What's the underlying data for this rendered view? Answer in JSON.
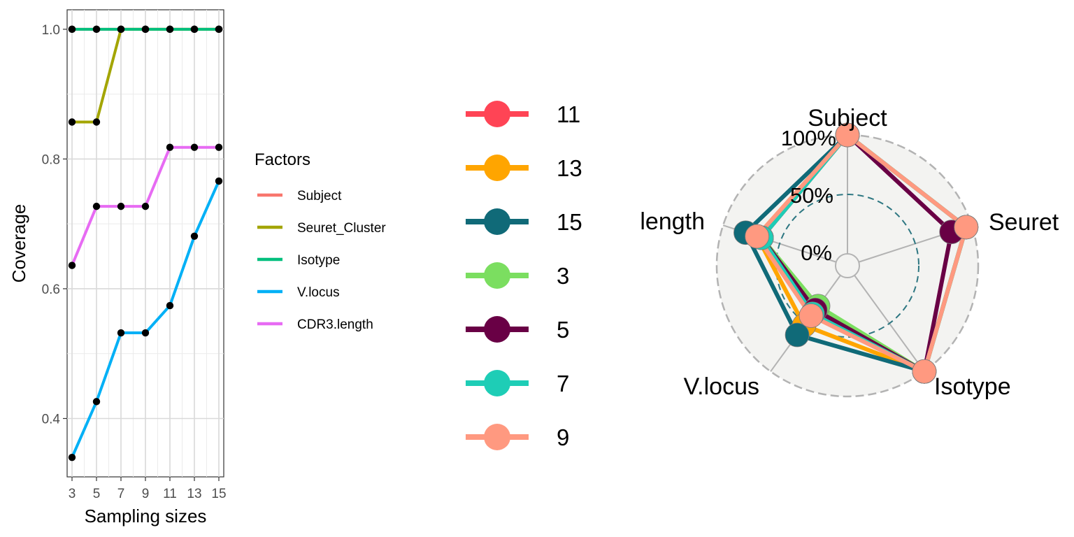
{
  "chart_data": [
    {
      "type": "line",
      "xlabel": "Sampling sizes",
      "ylabel": "Coverage",
      "x": [
        3,
        5,
        7,
        9,
        11,
        13,
        15
      ],
      "x_ticks": [
        "3",
        "5",
        "7",
        "9",
        "11",
        "13",
        "15"
      ],
      "ylim": [
        0.31,
        1.03
      ],
      "y_ticks": [
        0.4,
        0.6,
        0.8,
        1.0
      ],
      "y_tick_labels": [
        "0.4",
        "0.6",
        "0.8",
        "1.0"
      ],
      "grid": true,
      "legend_title": "Factors",
      "legend_position": "right",
      "series": [
        {
          "name": "Subject",
          "color": "#F8766D",
          "values": [
            1.0,
            1.0,
            1.0,
            1.0,
            1.0,
            1.0,
            1.0
          ]
        },
        {
          "name": "Seuret_Cluster",
          "color": "#A3A500",
          "values": [
            0.857,
            0.857,
            1.0,
            1.0,
            1.0,
            1.0,
            1.0
          ]
        },
        {
          "name": "Isotype",
          "color": "#00BF7D",
          "values": [
            1.0,
            1.0,
            1.0,
            1.0,
            1.0,
            1.0,
            1.0
          ]
        },
        {
          "name": "V.locus",
          "color": "#00B0F6",
          "values": [
            0.34,
            0.426,
            0.532,
            0.532,
            0.574,
            0.681,
            0.766
          ]
        },
        {
          "name": "CDR3.length",
          "color": "#E76BF3",
          "values": [
            0.636,
            0.727,
            0.727,
            0.727,
            0.818,
            0.818,
            0.818
          ]
        }
      ]
    },
    {
      "type": "radar",
      "axes": [
        "Subject",
        "Seuret",
        "Isotype",
        "V.locus",
        "length"
      ],
      "grid_labels": [
        "0%",
        "50%",
        "100%"
      ],
      "range": [
        0,
        100
      ],
      "legend_position": "left",
      "series": [
        {
          "name": "11",
          "color": "#FF4455",
          "values": [
            100,
            95,
            100,
            40,
            66
          ]
        },
        {
          "name": "13",
          "color": "#FFA500",
          "values": [
            100,
            95,
            100,
            52,
            70
          ]
        },
        {
          "name": "15",
          "color": "#106A78",
          "values": [
            100,
            95,
            100,
            62,
            80
          ]
        },
        {
          "name": "3",
          "color": "#7BDE60",
          "values": [
            100,
            95,
            100,
            32,
            66
          ]
        },
        {
          "name": "5",
          "color": "#690045",
          "values": [
            100,
            82,
            100,
            36,
            66
          ]
        },
        {
          "name": "7",
          "color": "#1ECDB6",
          "values": [
            100,
            95,
            100,
            40,
            66
          ]
        },
        {
          "name": "9",
          "color": "#FF9980",
          "values": [
            100,
            95,
            100,
            42,
            70
          ]
        }
      ]
    }
  ]
}
